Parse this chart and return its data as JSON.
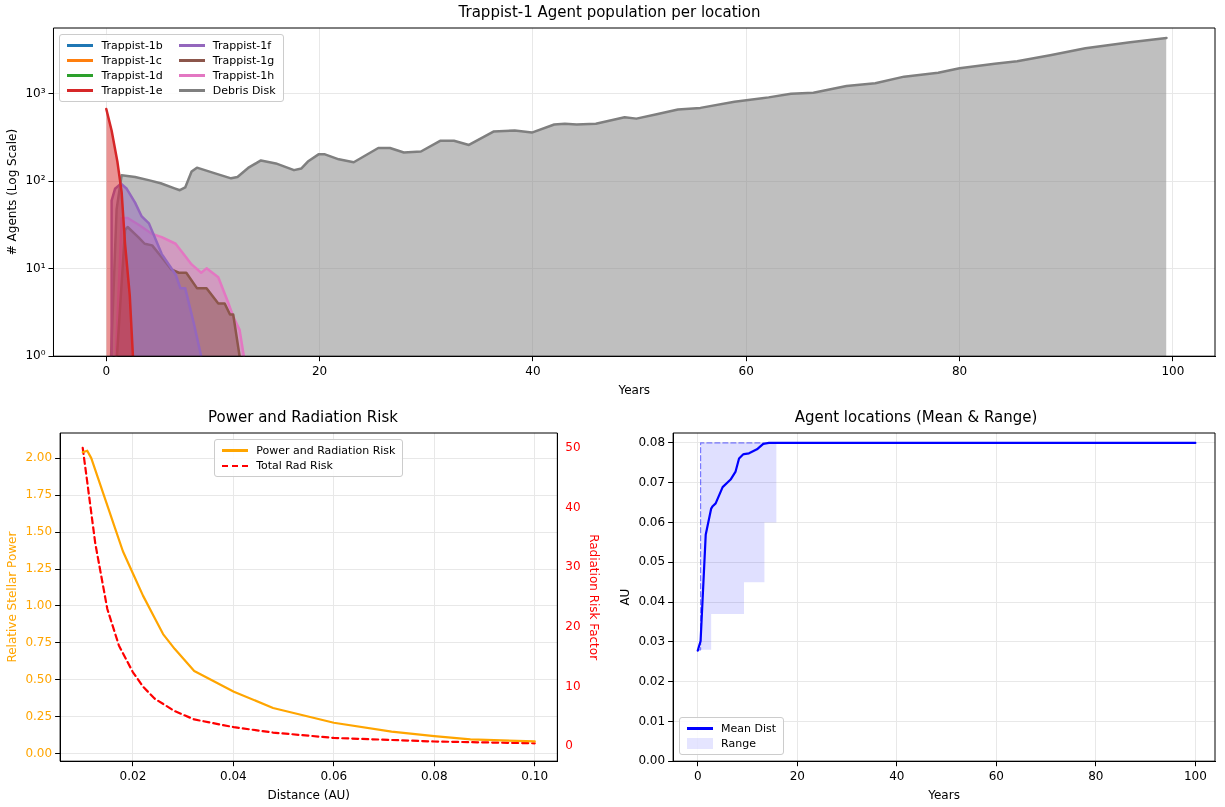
{
  "chart_data": [
    {
      "type": "area",
      "title": "Trappist-1 Agent population per location",
      "xlabel": "Years",
      "ylabel": "# Agents (Log Scale)",
      "log": "y",
      "grid": true,
      "legend": "top left",
      "xlim": [
        -4.95,
        103.95
      ],
      "xticks": [
        0,
        20,
        40,
        60,
        80,
        100
      ],
      "ylim": [
        1,
        5650
      ],
      "yticks": [
        {
          "value": 1,
          "label": "10⁰"
        },
        {
          "value": 10,
          "label": "10¹"
        },
        {
          "value": 100,
          "label": "10²"
        },
        {
          "value": 1000,
          "label": "10³"
        }
      ],
      "series": [
        {
          "name": "Trappist-1b",
          "color": "#1f77b4"
        },
        {
          "name": "Trappist-1c",
          "color": "#ff7f0e"
        },
        {
          "name": "Trappist-1d",
          "color": "#2ca02c"
        },
        {
          "name": "Trappist-1e",
          "color": "#d62728",
          "x": [
            0,
            0.5,
            1.04,
            1.44,
            1.76,
            2.2,
            2.5
          ],
          "values": [
            670,
            380,
            168,
            75,
            19.3,
            5,
            1
          ]
        },
        {
          "name": "Trappist-1f",
          "color": "#9467bd",
          "x": [
            0.45,
            0.5,
            0.82,
            1.38,
            1.92,
            2.7,
            3.3,
            4.0,
            5.2,
            6.5,
            6.95,
            7.4,
            8.2,
            8.9
          ],
          "values": [
            1,
            60,
            82,
            94,
            82,
            57,
            40,
            33,
            14.7,
            8.6,
            6,
            6,
            2.4,
            1
          ]
        },
        {
          "name": "Trappist-1g",
          "color": "#8c564b",
          "x": [
            1.0,
            1.76,
            2.0,
            3.0,
            3.6,
            4.3,
            5.2,
            6.1,
            6.8,
            7.5,
            8.5,
            9.4,
            10.5,
            11.1,
            11.6,
            11.9,
            12.5
          ],
          "values": [
            1,
            27.6,
            30,
            23,
            19.3,
            18.5,
            13.5,
            9.8,
            9,
            9,
            6,
            6,
            4,
            4,
            3,
            3,
            1
          ]
        },
        {
          "name": "Trappist-1h",
          "color": "#e377c2",
          "x": [
            0.9,
            1.44,
            2.0,
            3.0,
            4.3,
            5.2,
            6.5,
            8.0,
            8.9,
            9.4,
            10.5,
            11.4,
            11.9,
            12.5,
            12.9
          ],
          "values": [
            1,
            38,
            38,
            32,
            25,
            23,
            19.3,
            11.2,
            9,
            10.1,
            8,
            4.2,
            2.85,
            2,
            1
          ]
        },
        {
          "name": "Debris Disk",
          "color": "#7f7f7f",
          "x": [
            0.45,
            0.97,
            1.44,
            2.7,
            3.96,
            5.1,
            6.4,
            6.9,
            7.4,
            8.0,
            8.5,
            10.2,
            11.7,
            12.3,
            13.3,
            14.5,
            15.9,
            17.6,
            18.3,
            18.9,
            19.9,
            20.5,
            21.8,
            23.2,
            25.5,
            26.6,
            27.9,
            29.5,
            31.3,
            32.6,
            34.0,
            36.3,
            38.3,
            39.9,
            42.0,
            43.0,
            44.1,
            45.9,
            48.6,
            49.7,
            51.5,
            53.6,
            55.7,
            58.9,
            62.1,
            64.2,
            66.3,
            69.4,
            72.1,
            74.8,
            78.0,
            80.0,
            83.3,
            85.4,
            88.5,
            91.8,
            96.0,
            99.4
          ],
          "values": [
            1,
            48,
            117,
            112,
            103,
            95,
            83,
            79,
            85,
            129,
            143,
            123,
            108,
            112,
            142,
            173,
            160,
            134,
            140,
            168,
            203,
            203,
            178,
            165,
            240,
            240,
            213,
            219,
            290,
            290,
            260,
            370,
            380,
            360,
            445,
            455,
            445,
            455,
            540,
            520,
            580,
            660,
            690,
            810,
            910,
            1000,
            1030,
            1230,
            1320,
            1570,
            1740,
            1960,
            2200,
            2350,
            2760,
            3320,
            3880,
            4350
          ]
        }
      ]
    },
    {
      "type": "line",
      "title": "Power and Radiation Risk",
      "xlabel": "Distance (AU)",
      "ylabel": "Relative Stellar Power",
      "y2label": "Radiation Risk Factor",
      "grid": true,
      "legend": "top",
      "xlim": [
        0.0055,
        0.1045
      ],
      "xticks": [
        {
          "value": 0.02,
          "label": "0.02"
        },
        {
          "value": 0.04,
          "label": "0.04"
        },
        {
          "value": 0.06,
          "label": "0.06"
        },
        {
          "value": 0.08,
          "label": "0.08"
        },
        {
          "value": 0.1,
          "label": "0.10"
        }
      ],
      "ylim": [
        -0.05,
        2.17
      ],
      "yticks": [
        {
          "value": 0,
          "label": "0.00"
        },
        {
          "value": 0.25,
          "label": "0.25"
        },
        {
          "value": 0.5,
          "label": "0.50"
        },
        {
          "value": 0.75,
          "label": "0.75"
        },
        {
          "value": 1,
          "label": "1.00"
        },
        {
          "value": 1.25,
          "label": "1.25"
        },
        {
          "value": 1.5,
          "label": "1.50"
        },
        {
          "value": 1.75,
          "label": "1.75"
        },
        {
          "value": 2,
          "label": "2.00"
        }
      ],
      "y2lim": [
        -2.5,
        52.5
      ],
      "y2ticks": [
        0,
        10,
        20,
        30,
        40,
        50
      ],
      "series": [
        {
          "name": "Power and Radiation Risk",
          "color": "#ffa500",
          "x": [
            0.01,
            0.0109,
            0.0117,
            0.0141,
            0.0165,
            0.018,
            0.02,
            0.022,
            0.0243,
            0.026,
            0.0283,
            0.0322,
            0.0401,
            0.0479,
            0.06,
            0.0715,
            0.08,
            0.0872,
            0.1
          ],
          "values": [
            2.04,
            2.05,
            2.0,
            1.76,
            1.52,
            1.37,
            1.22,
            1.07,
            0.92,
            0.81,
            0.71,
            0.56,
            0.42,
            0.31,
            0.21,
            0.15,
            0.12,
            0.097,
            0.084
          ]
        },
        {
          "name": "Total Rad Risk",
          "color": "#ff0000",
          "axis": "y2",
          "line_style": "dashed",
          "x": [
            0.01,
            0.0109,
            0.0125,
            0.0149,
            0.0172,
            0.018,
            0.02,
            0.022,
            0.0243,
            0.0283,
            0.0322,
            0.0401,
            0.0479,
            0.06,
            0.08,
            0.1
          ],
          "values": [
            50,
            44.3,
            34,
            23,
            16.9,
            15.6,
            12.4,
            10.0,
            8.0,
            5.9,
            4.5,
            3.2,
            2.3,
            1.4,
            0.8,
            0.5
          ]
        }
      ]
    },
    {
      "type": "line",
      "title": "Agent locations (Mean & Range)",
      "xlabel": "Years",
      "ylabel": "AU",
      "grid": true,
      "legend": "bottom left",
      "xlim": [
        -4.95,
        103.95
      ],
      "xticks": [
        0,
        20,
        40,
        60,
        80,
        100
      ],
      "ylim": [
        0,
        0.0825
      ],
      "yticks": [
        {
          "value": 0,
          "label": "0.00"
        },
        {
          "value": 0.01,
          "label": "0.01"
        },
        {
          "value": 0.02,
          "label": "0.02"
        },
        {
          "value": 0.03,
          "label": "0.03"
        },
        {
          "value": 0.04,
          "label": "0.04"
        },
        {
          "value": 0.05,
          "label": "0.05"
        },
        {
          "value": 0.06,
          "label": "0.06"
        },
        {
          "value": 0.07,
          "label": "0.07"
        },
        {
          "value": 0.08,
          "label": "0.08"
        }
      ],
      "series": [
        {
          "name": "Mean Dist",
          "color": "#0000ff",
          "x": [
            0,
            0.57,
            1.6,
            2.7,
            3.0,
            3.6,
            5.0,
            6.6,
            7.6,
            8.3,
            9.1,
            9.3,
            10.3,
            11.9,
            13.1,
            13.4,
            14.3,
            15.8,
            100
          ],
          "values": [
            0.0278,
            0.0302,
            0.0569,
            0.0635,
            0.0641,
            0.0648,
            0.0689,
            0.0708,
            0.0728,
            0.0761,
            0.0771,
            0.0772,
            0.0774,
            0.0784,
            0.0797,
            0.0798,
            0.08,
            0.08,
            0.08
          ],
          "lower": [
            0.028,
            0.028,
            0.028,
            0.037,
            0.037,
            0.037,
            0.037,
            0.037,
            0.037,
            0.037,
            0.037,
            0.045,
            0.045,
            0.045,
            0.045,
            0.06,
            0.06,
            0.08,
            0.08
          ],
          "upper": [
            0.028,
            0.08,
            0.08,
            0.08,
            0.08,
            0.08,
            0.08,
            0.08,
            0.08,
            0.08,
            0.08,
            0.08,
            0.08,
            0.08,
            0.08,
            0.08,
            0.08,
            0.08,
            0.08
          ]
        },
        {
          "name": "Range",
          "type": "area",
          "color": "#0000ff"
        }
      ]
    }
  ]
}
